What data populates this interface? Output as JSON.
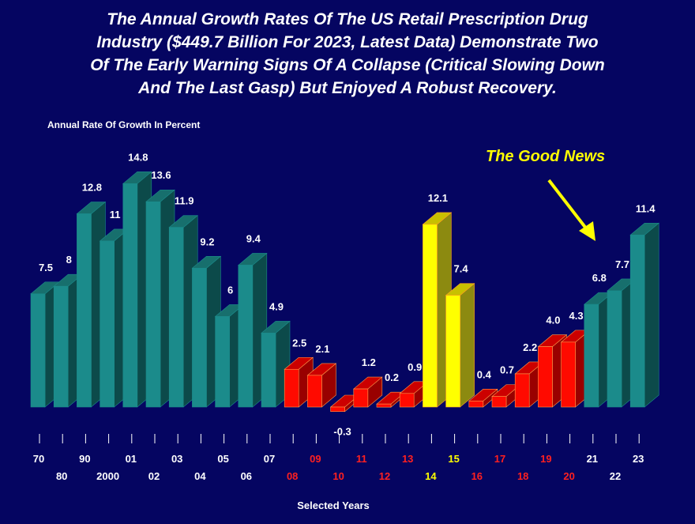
{
  "chart_data": {
    "type": "bar",
    "title": "The Annual Growth Rates Of The US Retail Prescription Drug Industry ($449.7 Billion For 2023, Latest Data) Demonstrate Two Of The Early Warning Signs Of A Collapse (Critical Slowing Down And The Last Gasp) But Enjoyed A Robust Recovery.",
    "title_lines": [
      "The Annual Growth Rates Of The US Retail Prescription Drug",
      "Industry ($449.7 Billion For 2023, Latest Data) Demonstrate Two",
      "Of The Early Warning Signs Of A Collapse (Critical Slowing Down",
      "And The Last Gasp) But Enjoyed A Robust Recovery."
    ],
    "ylabel": "Annual Rate Of Growth In Percent",
    "xlabel": "Selected Years",
    "annotation": "The Good News",
    "ylim": [
      -1,
      15
    ],
    "categories": [
      "70",
      "80",
      "90",
      "2000",
      "01",
      "02",
      "03",
      "04",
      "05",
      "06",
      "07",
      "08",
      "09",
      "10",
      "11",
      "12",
      "13",
      "14",
      "15",
      "16",
      "17",
      "18",
      "19",
      "20",
      "21",
      "22",
      "23"
    ],
    "values": [
      7.5,
      8,
      12.8,
      11,
      14.8,
      13.6,
      11.9,
      9.2,
      6,
      9.4,
      4.9,
      2.5,
      2.1,
      -0.3,
      1.2,
      0.2,
      0.9,
      12.1,
      7.4,
      0.4,
      0.7,
      2.2,
      4.0,
      4.3,
      6.8,
      7.7,
      11.4
    ],
    "value_labels": [
      "7.5",
      "8",
      "12.8",
      "11",
      "14.8",
      "13.6",
      "11.9",
      "9.2",
      "6",
      "9.4",
      "4.9",
      "2.5",
      "2.1",
      "-0.3",
      "1.2",
      "0.2",
      "0.9",
      "12.1",
      "7.4",
      "0.4",
      "0.7",
      "2.2",
      "4.0",
      "4.3",
      "6.8",
      "7.7",
      "11.4"
    ],
    "groups": [
      "teal",
      "teal",
      "teal",
      "teal",
      "teal",
      "teal",
      "teal",
      "teal",
      "teal",
      "teal",
      "teal",
      "red",
      "red",
      "red",
      "red",
      "red",
      "red",
      "yellow",
      "yellow",
      "red",
      "red",
      "red",
      "red",
      "red",
      "teal",
      "teal",
      "teal"
    ],
    "colors": {
      "teal": {
        "front": "#1b8b8b",
        "top": "#176f6d",
        "side": "#0c4a4a",
        "edge": "#1b8b8b",
        "label": "#ffffff"
      },
      "red": {
        "front": "#ff0a00",
        "top": "#cc0000",
        "side": "#990000",
        "edge": "#ff9a4a",
        "label": "#ff2020"
      },
      "yellow": {
        "front": "#ffff00",
        "top": "#c8c000",
        "side": "#8c8a10",
        "edge": "#ffa020",
        "label": "#ffff00"
      }
    },
    "background": "#050561",
    "grid": false
  }
}
